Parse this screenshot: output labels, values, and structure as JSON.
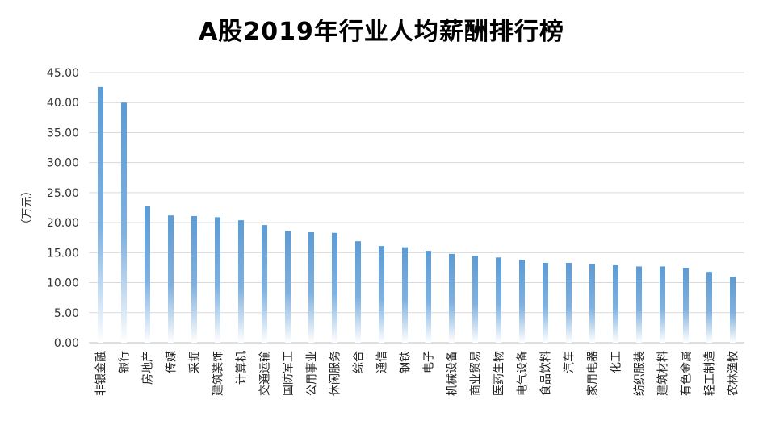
{
  "chart_data": {
    "type": "bar",
    "title": "A股2019年行业人均薪酬排行榜",
    "ylabel": "（万元）",
    "xlabel": "",
    "ylim": [
      0,
      45
    ],
    "ytick_step": 5,
    "ytick_labels": [
      "0.00",
      "5.00",
      "10.00",
      "15.00",
      "20.00",
      "25.00",
      "30.00",
      "35.00",
      "40.00",
      "45.00"
    ],
    "grid": true,
    "legend": "none",
    "bar_color_top": "#5b9bd5",
    "bar_color_bottom": "#ffffff",
    "categories": [
      "非银金融",
      "银行",
      "房地产",
      "传媒",
      "采掘",
      "建筑装饰",
      "计算机",
      "交通运输",
      "国防军工",
      "公用事业",
      "休闲服务",
      "综合",
      "通信",
      "钢铁",
      "电子",
      "机械设备",
      "商业贸易",
      "医药生物",
      "电气设备",
      "食品饮料",
      "汽车",
      "家用电器",
      "化工",
      "纺织服装",
      "建筑材料",
      "有色金属",
      "轻工制造",
      "农林渔牧"
    ],
    "values": [
      42.6,
      40.0,
      22.7,
      21.2,
      21.1,
      20.9,
      20.4,
      19.6,
      18.6,
      18.4,
      18.3,
      16.9,
      16.1,
      15.9,
      15.3,
      14.8,
      14.5,
      14.2,
      13.8,
      13.3,
      13.3,
      13.1,
      12.9,
      12.7,
      12.7,
      12.5,
      11.8,
      11.0
    ]
  }
}
